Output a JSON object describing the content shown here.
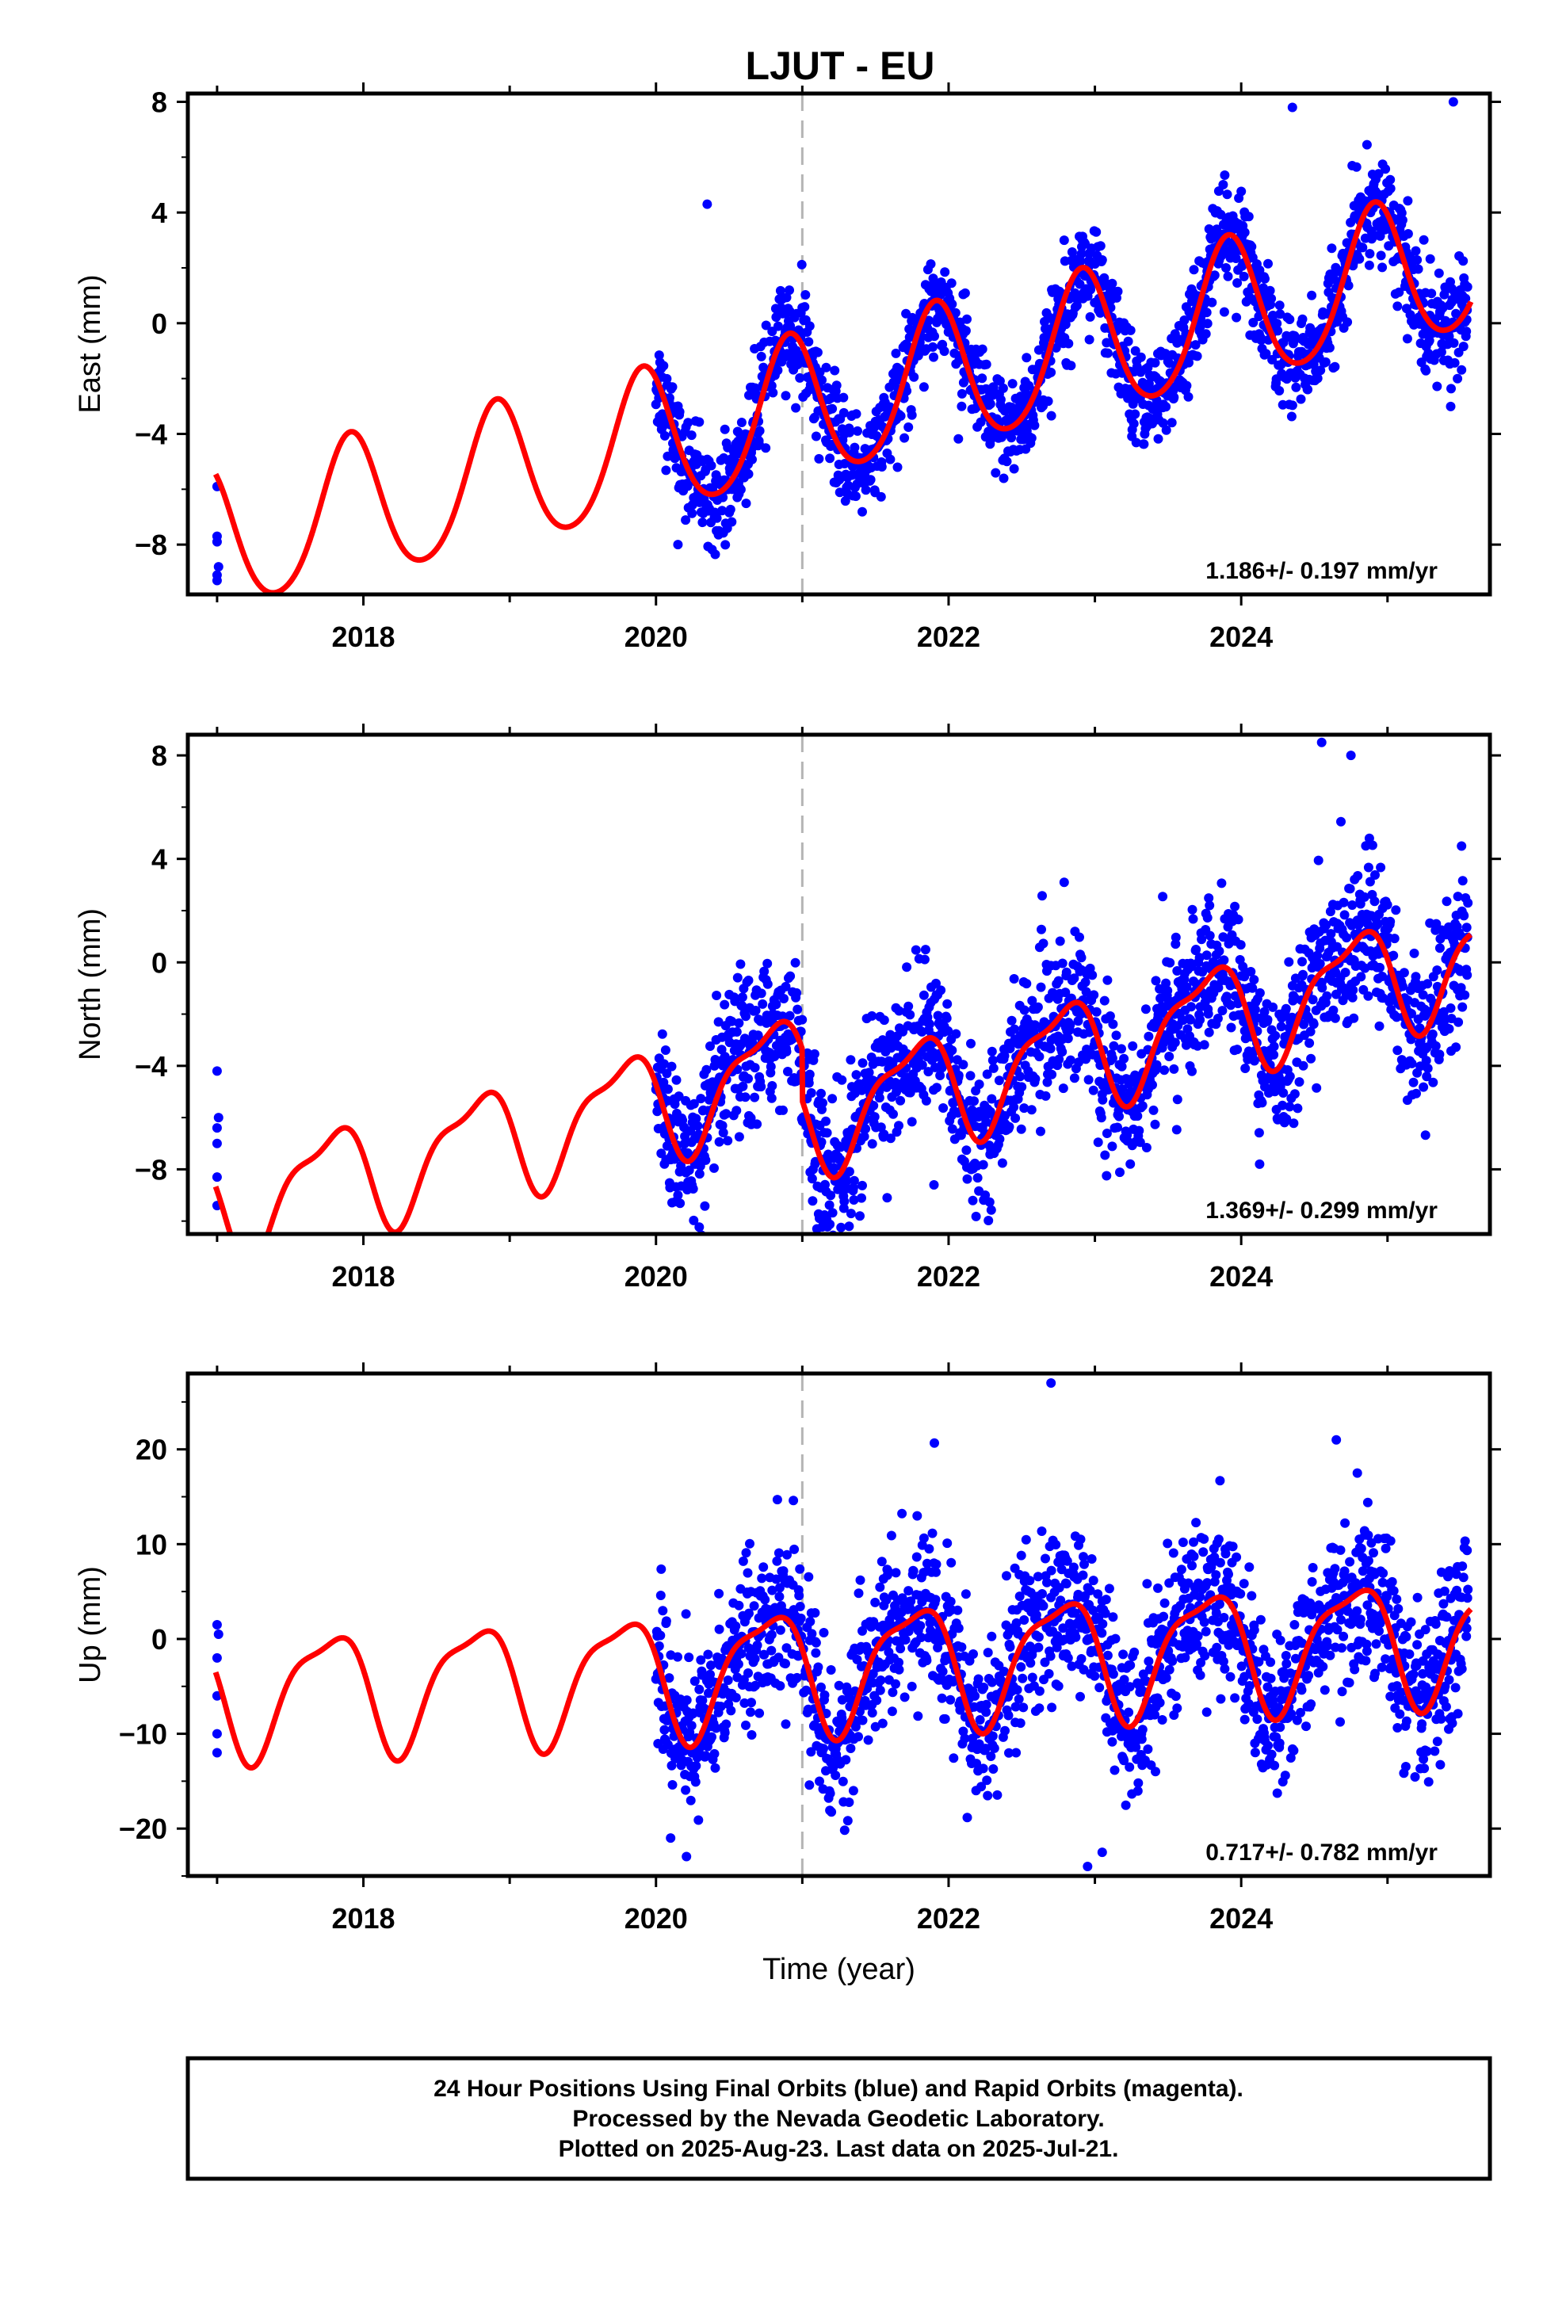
{
  "title": "LJUT - EU",
  "caption": {
    "line1": "24 Hour Positions Using Final Orbits (blue) and Rapid Orbits (magenta).",
    "line2": "Processed by the Nevada Geodetic Laboratory.",
    "line3": "Plotted on 2025-Aug-23. Last data on 2025-Jul-21."
  },
  "colors": {
    "data": "#0000ff",
    "model": "#ff0000",
    "event_line": "#b4b4b4",
    "frame": "#000000"
  },
  "chart_data": [
    {
      "type": "scatter",
      "ylabel": "East (mm)",
      "xlabel": "",
      "xlim": [
        2016.8,
        2025.7
      ],
      "ylim": [
        -9.8,
        8.3
      ],
      "yticks": [
        -8,
        -4,
        0,
        4,
        8
      ],
      "ytick_labels": [
        "−8",
        "−4",
        "0",
        "4",
        "8"
      ],
      "xticks": [
        2018,
        2020,
        2022,
        2024
      ],
      "xtick_labels": [
        "2018",
        "2020",
        "2022",
        "2024"
      ],
      "event_line_x": 2021.0,
      "rate_text": "1.186+/- 0.197 mm/yr",
      "model": {
        "rate": 1.186,
        "offset": -3.16,
        "annual_amp": 2.6,
        "annual_phase": 2.14,
        "semiannual_amp": 0.3,
        "semiannual_phase": 2.6,
        "step_at": 2021.0,
        "step": 0.0
      },
      "early_points": [
        [
          2017.0,
          -9.3
        ],
        [
          2017.0,
          -9.1
        ],
        [
          2017.0,
          -7.9
        ],
        [
          2017.0,
          -7.7
        ],
        [
          2017.0,
          -5.9
        ],
        [
          2017.01,
          -8.8
        ]
      ],
      "scatter": {
        "x_start": 2020.0,
        "x_end": 2025.55,
        "noise_sd": 0.9,
        "outliers": [
          [
            2020.15,
            -8.0
          ],
          [
            2020.35,
            4.3
          ],
          [
            2024.35,
            7.8
          ],
          [
            2025.45,
            8.0
          ]
        ]
      }
    },
    {
      "type": "scatter",
      "ylabel": "North (mm)",
      "xlabel": "",
      "xlim": [
        2016.8,
        2025.7
      ],
      "ylim": [
        -10.5,
        8.8
      ],
      "yticks": [
        -8,
        -4,
        0,
        4,
        8
      ],
      "ytick_labels": [
        "−8",
        "−4",
        "0",
        "4",
        "8"
      ],
      "xticks": [
        2018,
        2020,
        2022,
        2024
      ],
      "xtick_labels": [
        "2018",
        "2020",
        "2022",
        "2024"
      ],
      "event_line_x": 2021.0,
      "rate_text": "1.369+/- 0.299 mm/yr",
      "model": {
        "rate": 1.369,
        "offset": -4.0,
        "annual_amp": 2.0,
        "annual_phase": 3.1,
        "semiannual_amp": 0.7,
        "semiannual_phase": 2.2,
        "step_at": 2021.0,
        "step": -2.0
      },
      "early_points": [
        [
          2017.0,
          -9.4
        ],
        [
          2017.0,
          -8.3
        ],
        [
          2017.0,
          -7.0
        ],
        [
          2017.0,
          -6.4
        ],
        [
          2017.0,
          -4.2
        ],
        [
          2017.01,
          -6.0
        ]
      ],
      "scatter": {
        "x_start": 2020.0,
        "x_end": 2025.55,
        "noise_sd": 1.4,
        "outliers": [
          [
            2020.15,
            -9.0
          ],
          [
            2021.1,
            -10.3
          ],
          [
            2021.9,
            -8.6
          ],
          [
            2022.25,
            -9.0
          ],
          [
            2024.55,
            8.5
          ],
          [
            2024.75,
            8.0
          ]
        ]
      }
    },
    {
      "type": "scatter",
      "ylabel": "Up (mm)",
      "xlabel": "Time (year)",
      "xlim": [
        2016.8,
        2025.7
      ],
      "ylim": [
        -25.0,
        28.0
      ],
      "yticks": [
        -20,
        -10,
        0,
        10,
        20
      ],
      "ytick_labels": [
        "−20",
        "−10",
        "0",
        "10",
        "20"
      ],
      "xticks": [
        2018,
        2020,
        2022,
        2024
      ],
      "xtick_labels": [
        "2018",
        "2020",
        "2022",
        "2024"
      ],
      "event_line_x": 2021.0,
      "rate_text": "0.717+/- 0.782 mm/yr",
      "model": {
        "rate": 0.717,
        "offset": -3.0,
        "annual_amp": 6.2,
        "annual_phase": 3.1,
        "semiannual_amp": 1.8,
        "semiannual_phase": 2.0,
        "step_at": 2021.0,
        "step": 0.0
      },
      "early_points": [
        [
          2017.0,
          -12.0
        ],
        [
          2017.0,
          -10.0
        ],
        [
          2017.0,
          -6.0
        ],
        [
          2017.0,
          -2.0
        ],
        [
          2017.0,
          1.5
        ],
        [
          2017.01,
          0.5
        ]
      ],
      "scatter": {
        "x_start": 2020.0,
        "x_end": 2025.55,
        "noise_sd": 4.2,
        "outliers": [
          [
            2022.7,
            27.0
          ],
          [
            2022.95,
            -24.0
          ],
          [
            2023.05,
            -22.5
          ],
          [
            2020.1,
            -21.0
          ],
          [
            2024.65,
            21.0
          ]
        ]
      }
    }
  ]
}
